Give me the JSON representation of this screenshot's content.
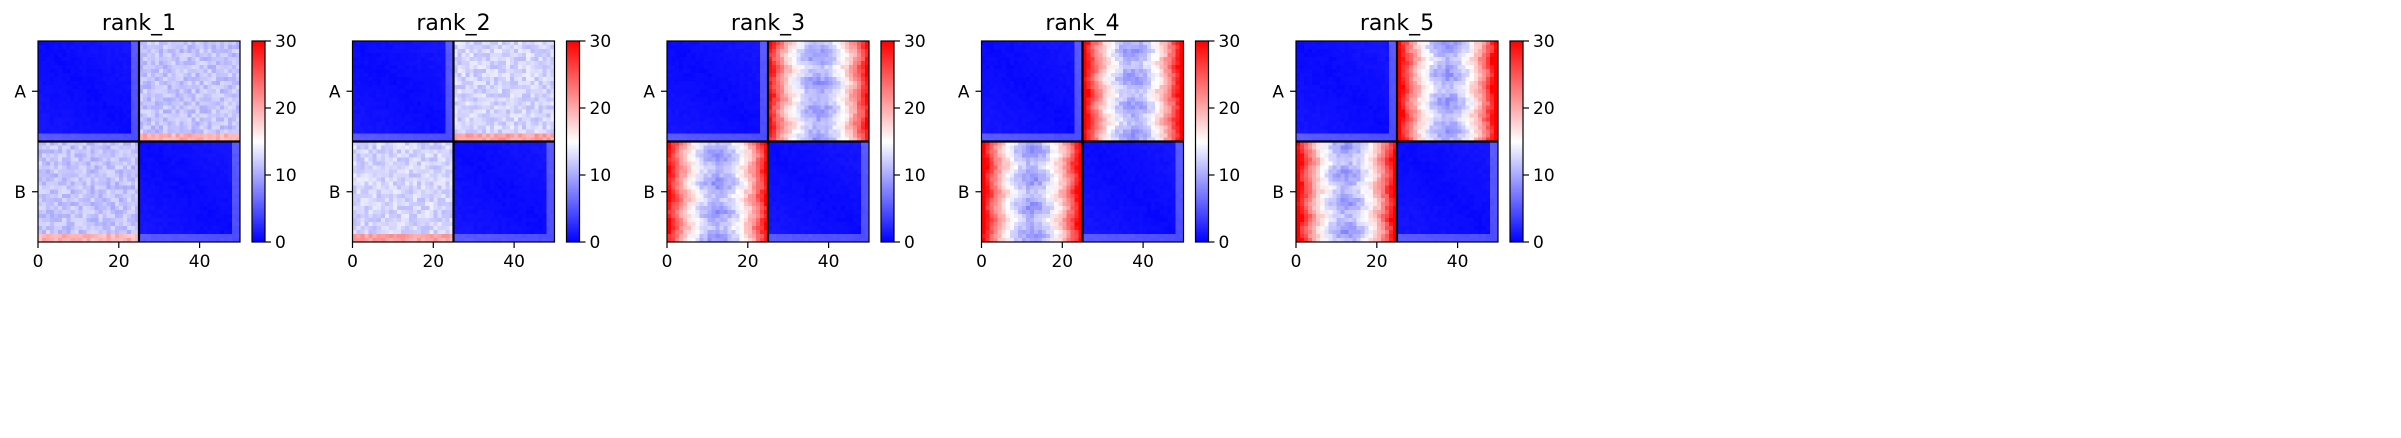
{
  "chart_data": [
    {
      "type": "heatmap",
      "title": "rank_1",
      "pattern": "uniform",
      "ylabels": [
        "A",
        "B"
      ],
      "xticks": [
        "0",
        "20",
        "40"
      ],
      "xlim": [
        0,
        50
      ],
      "colorbar": {
        "ticks": [
          "0",
          "10",
          "20",
          "30"
        ],
        "range": [
          0,
          30
        ]
      }
    },
    {
      "type": "heatmap",
      "title": "rank_2",
      "pattern": "uniform",
      "ylabels": [
        "A",
        "B"
      ],
      "xticks": [
        "0",
        "20",
        "40"
      ],
      "xlim": [
        0,
        50
      ],
      "colorbar": {
        "ticks": [
          "0",
          "10",
          "20",
          "30"
        ],
        "range": [
          0,
          30
        ]
      }
    },
    {
      "type": "heatmap",
      "title": "rank_3",
      "pattern": "u-shape",
      "ylabels": [
        "A",
        "B"
      ],
      "xticks": [
        "0",
        "20",
        "40"
      ],
      "xlim": [
        0,
        50
      ],
      "colorbar": {
        "ticks": [
          "0",
          "10",
          "20",
          "30"
        ],
        "range": [
          0,
          30
        ]
      }
    },
    {
      "type": "heatmap",
      "title": "rank_4",
      "pattern": "u-shape",
      "ylabels": [
        "A",
        "B"
      ],
      "xticks": [
        "0",
        "20",
        "40"
      ],
      "xlim": [
        0,
        50
      ],
      "colorbar": {
        "ticks": [
          "0",
          "10",
          "20",
          "30"
        ],
        "range": [
          0,
          30
        ]
      }
    },
    {
      "type": "heatmap",
      "title": "rank_5",
      "pattern": "u-shape",
      "ylabels": [
        "A",
        "B"
      ],
      "xticks": [
        "0",
        "20",
        "40"
      ],
      "xlim": [
        0,
        50
      ],
      "colorbar": {
        "ticks": [
          "0",
          "10",
          "20",
          "30"
        ],
        "range": [
          0,
          30
        ]
      }
    }
  ],
  "colormap": {
    "low": "#0000ff",
    "mid": "#ffffff",
    "high": "#ff0000"
  }
}
